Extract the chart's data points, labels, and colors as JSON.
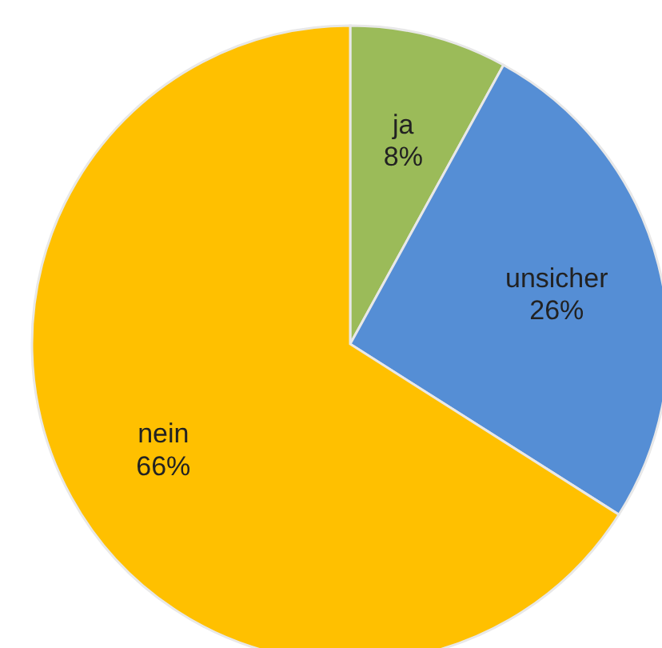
{
  "chart_data": {
    "type": "pie",
    "categories": [
      "ja",
      "unsicher",
      "nein"
    ],
    "values": [
      8,
      26,
      66
    ],
    "colors": [
      "#9bbb59",
      "#558ed5",
      "#ffc000"
    ],
    "value_labels": [
      "8%",
      "26%",
      "66%"
    ],
    "legend": false
  }
}
